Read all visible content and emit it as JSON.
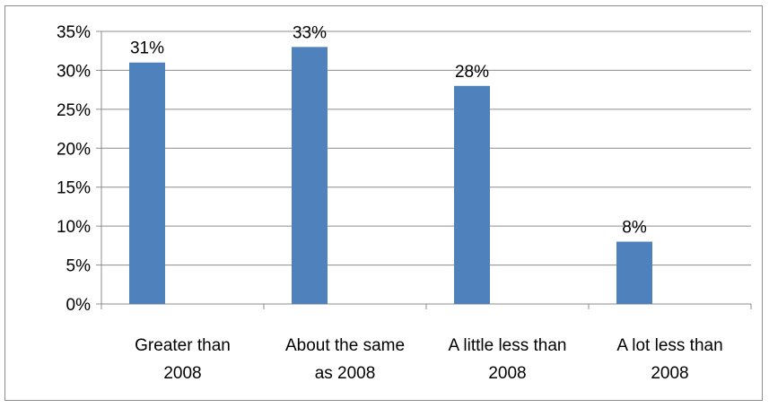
{
  "chart_data": {
    "type": "bar",
    "title": "",
    "xlabel": "",
    "ylabel": "",
    "categories": [
      [
        "Greater than",
        "2008"
      ],
      [
        "About the same",
        "as 2008"
      ],
      [
        "A little less than",
        "2008"
      ],
      [
        "A lot less than",
        "2008"
      ]
    ],
    "values": [
      31,
      33,
      28,
      8
    ],
    "data_labels": [
      "31%",
      "33%",
      "28%",
      "8%"
    ],
    "ylim": [
      0,
      35
    ],
    "yticks": [
      0,
      5,
      10,
      15,
      20,
      25,
      30,
      35
    ],
    "ytick_labels": [
      "0%",
      "5%",
      "10%",
      "15%",
      "20%",
      "25%",
      "30%",
      "35%"
    ],
    "grid": true,
    "legend": "none",
    "colors": {
      "bar": "#4f81bd",
      "grid": "#8c8c8c",
      "axis": "#8c8c8c",
      "border": "#8c8c8c"
    }
  }
}
